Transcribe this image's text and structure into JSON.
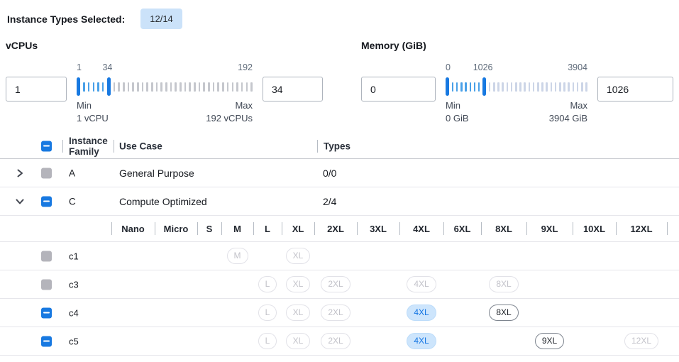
{
  "top": {
    "label": "Instance Types Selected:",
    "badge": "12/14"
  },
  "filters": [
    {
      "label": "vCPUs",
      "from_value": "1",
      "to_value": "34",
      "scale_min": "1",
      "scale_cur": "34",
      "scale_max": "192",
      "percent": 17.5,
      "ticks_active": 5,
      "ticks_inactive": 30,
      "tick_inactive_color": "#c5c7cd",
      "min_lines": [
        "Min",
        "1 vCPU"
      ],
      "max_lines": [
        "Max",
        "192 vCPUs"
      ]
    },
    {
      "label": "Memory (GiB)",
      "from_value": "0",
      "to_value": "1026",
      "scale_min": "0",
      "scale_cur": "1026",
      "scale_max": "3904",
      "percent": 26.3,
      "ticks_active": 7,
      "ticks_inactive": 23,
      "tick_inactive_color": "#ccd5e7",
      "min_lines": [
        "Min",
        "0 GiB"
      ],
      "max_lines": [
        "Max",
        "3904 GiB"
      ]
    }
  ],
  "table": {
    "headers": {
      "family": "Instance Family",
      "use_case": "Use Case",
      "types": "Types"
    },
    "family_rows": [
      {
        "family": "A",
        "use_case": "General Purpose",
        "types": "0/0",
        "expanded": false,
        "checkbox": "disabled"
      },
      {
        "family": "C",
        "use_case": "Compute Optimized",
        "types": "2/4",
        "expanded": true,
        "checkbox": "indeterminate"
      }
    ],
    "sizes": [
      "Nano",
      "Micro",
      "S",
      "M",
      "L",
      "XL",
      "2XL",
      "3XL",
      "4XL",
      "6XL",
      "8XL",
      "9XL",
      "10XL",
      "12XL"
    ],
    "instance_rows": [
      {
        "name": "c1",
        "checkbox": "disabled",
        "pills": [
          {
            "size": "M",
            "state": "disabled"
          },
          {
            "size": "XL",
            "state": "disabled"
          }
        ]
      },
      {
        "name": "c3",
        "checkbox": "disabled",
        "pills": [
          {
            "size": "L",
            "state": "disabled"
          },
          {
            "size": "XL",
            "state": "disabled"
          },
          {
            "size": "2XL",
            "state": "disabled"
          },
          {
            "size": "4XL",
            "state": "disabled"
          },
          {
            "size": "8XL",
            "state": "disabled"
          }
        ]
      },
      {
        "name": "c4",
        "checkbox": "indeterminate",
        "pills": [
          {
            "size": "L",
            "state": "disabled"
          },
          {
            "size": "XL",
            "state": "disabled"
          },
          {
            "size": "2XL",
            "state": "disabled"
          },
          {
            "size": "4XL",
            "state": "selected"
          },
          {
            "size": "8XL",
            "state": "enabled"
          }
        ]
      },
      {
        "name": "c5",
        "checkbox": "indeterminate",
        "pills": [
          {
            "size": "L",
            "state": "disabled"
          },
          {
            "size": "XL",
            "state": "disabled"
          },
          {
            "size": "2XL",
            "state": "disabled"
          },
          {
            "size": "4XL",
            "state": "selected"
          },
          {
            "size": "9XL",
            "state": "enabled"
          },
          {
            "size": "12XL",
            "state": "disabled"
          }
        ]
      }
    ]
  },
  "colors": {
    "accent_blue": "#1879e1",
    "selected_pill_bg": "#cde5fc",
    "badge_bg": "#cbe2f9",
    "disabled_gray": "#b4b4bb"
  }
}
